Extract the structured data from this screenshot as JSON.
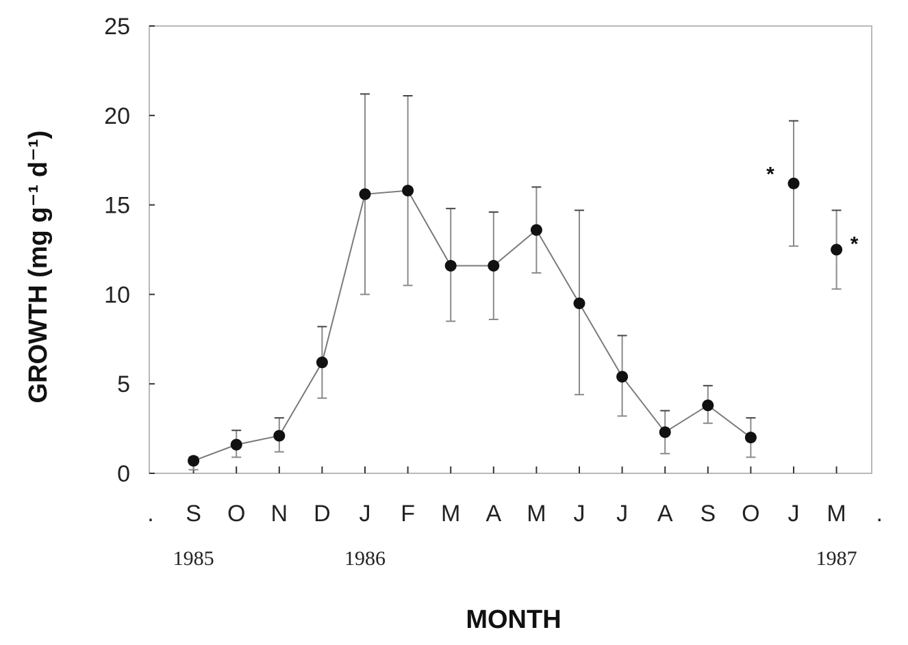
{
  "chart_data": {
    "type": "line",
    "title": "",
    "xlabel": "MONTH",
    "ylabel": "GROWTH  (mg g⁻¹ d⁻¹)",
    "ylim": [
      0,
      25
    ],
    "yticks": [
      0,
      5,
      10,
      15,
      20,
      25
    ],
    "grid": false,
    "legend": "none",
    "x_tick_labels": [
      ".",
      "S",
      "O",
      "N",
      "D",
      "J",
      "F",
      "M",
      "A",
      "M",
      "J",
      "J",
      "A",
      "S",
      "O",
      "J",
      "M",
      "."
    ],
    "year_labels": [
      {
        "text": "1985",
        "under_tick": 1
      },
      {
        "text": "1986",
        "under_tick": 5
      },
      {
        "text": "1987",
        "under_tick": 16
      }
    ],
    "series": [
      {
        "connected": true,
        "points": [
          {
            "tick": 1,
            "label": "S",
            "y": 0.7,
            "err_low": 0.2,
            "err_high": 0.9
          },
          {
            "tick": 2,
            "label": "O",
            "y": 1.6,
            "err_low": 0.9,
            "err_high": 2.4
          },
          {
            "tick": 3,
            "label": "N",
            "y": 2.1,
            "err_low": 1.2,
            "err_high": 3.1
          },
          {
            "tick": 4,
            "label": "D",
            "y": 6.2,
            "err_low": 4.2,
            "err_high": 8.2
          },
          {
            "tick": 5,
            "label": "J",
            "y": 15.6,
            "err_low": 10.0,
            "err_high": 21.2
          },
          {
            "tick": 6,
            "label": "F",
            "y": 15.8,
            "err_low": 10.5,
            "err_high": 21.1
          },
          {
            "tick": 7,
            "label": "M",
            "y": 11.6,
            "err_low": 8.5,
            "err_high": 14.8
          },
          {
            "tick": 8,
            "label": "A",
            "y": 11.6,
            "err_low": 8.6,
            "err_high": 14.6
          },
          {
            "tick": 9,
            "label": "M",
            "y": 13.6,
            "err_low": 11.2,
            "err_high": 16.0
          },
          {
            "tick": 10,
            "label": "J",
            "y": 9.5,
            "err_low": 4.4,
            "err_high": 14.7
          },
          {
            "tick": 11,
            "label": "J",
            "y": 5.4,
            "err_low": 3.2,
            "err_high": 7.7
          },
          {
            "tick": 12,
            "label": "A",
            "y": 2.3,
            "err_low": 1.1,
            "err_high": 3.5
          },
          {
            "tick": 13,
            "label": "S",
            "y": 3.8,
            "err_low": 2.8,
            "err_high": 4.9
          },
          {
            "tick": 14,
            "label": "O",
            "y": 2.0,
            "err_low": 0.9,
            "err_high": 3.1
          }
        ]
      },
      {
        "connected": false,
        "points": [
          {
            "tick": 15,
            "label": "J",
            "y": 16.2,
            "err_low": 12.7,
            "err_high": 19.7
          },
          {
            "tick": 16,
            "label": "M",
            "y": 12.5,
            "err_low": 10.3,
            "err_high": 14.7
          }
        ]
      }
    ],
    "annotations": [
      {
        "text": "*",
        "near_tick": 15,
        "side": "left",
        "y": 16.8
      },
      {
        "text": "*",
        "near_tick": 16,
        "side": "right",
        "y": 12.9
      }
    ]
  }
}
